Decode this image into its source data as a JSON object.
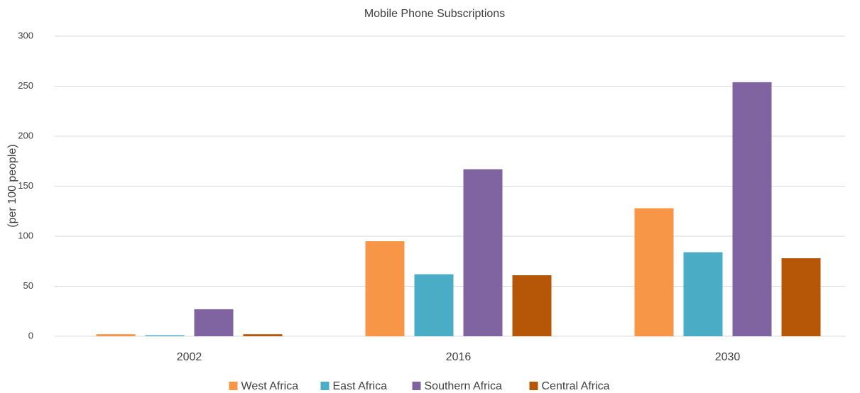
{
  "chart_data": {
    "type": "bar",
    "title": "Mobile Phone Subscriptions",
    "y_label": "(per 100 people)",
    "categories": [
      "2002",
      "2016",
      "2030"
    ],
    "series": [
      {
        "name": "West Africa",
        "color": "#f79646",
        "values": [
          2,
          95,
          128
        ]
      },
      {
        "name": "East Africa",
        "color": "#4bacc6",
        "values": [
          1,
          62,
          84
        ]
      },
      {
        "name": "Southern Africa",
        "color": "#8064a2",
        "values": [
          27,
          167,
          254
        ]
      },
      {
        "name": "Central Africa",
        "color": "#b65708",
        "values": [
          2,
          61,
          78
        ]
      }
    ],
    "ylim": [
      0,
      300
    ],
    "yticks": [
      0,
      50,
      100,
      150,
      200,
      250,
      300
    ],
    "grid": true,
    "legend": "bottom"
  }
}
